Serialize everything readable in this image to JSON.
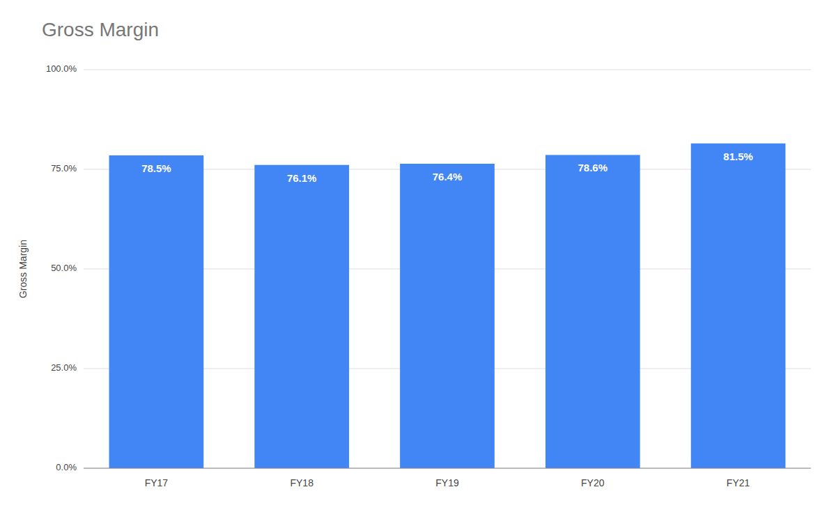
{
  "chart_data": {
    "type": "bar",
    "title": "Gross Margin",
    "ylabel": "Gross Margin",
    "categories": [
      "FY17",
      "FY18",
      "FY19",
      "FY20",
      "FY21"
    ],
    "values": [
      78.5,
      76.1,
      76.4,
      78.6,
      81.5
    ],
    "value_labels": [
      "78.5%",
      "76.1%",
      "76.4%",
      "78.6%",
      "81.5%"
    ],
    "data_labels": true,
    "color": "#4285F4",
    "ylim": [
      0,
      100
    ],
    "yticks": [
      {
        "value": 0,
        "label": "0.0%"
      },
      {
        "value": 25,
        "label": "25.0%"
      },
      {
        "value": 50,
        "label": "50.0%"
      },
      {
        "value": 75,
        "label": "75.0%"
      },
      {
        "value": 100,
        "label": "100.0%"
      }
    ],
    "grid": true
  }
}
